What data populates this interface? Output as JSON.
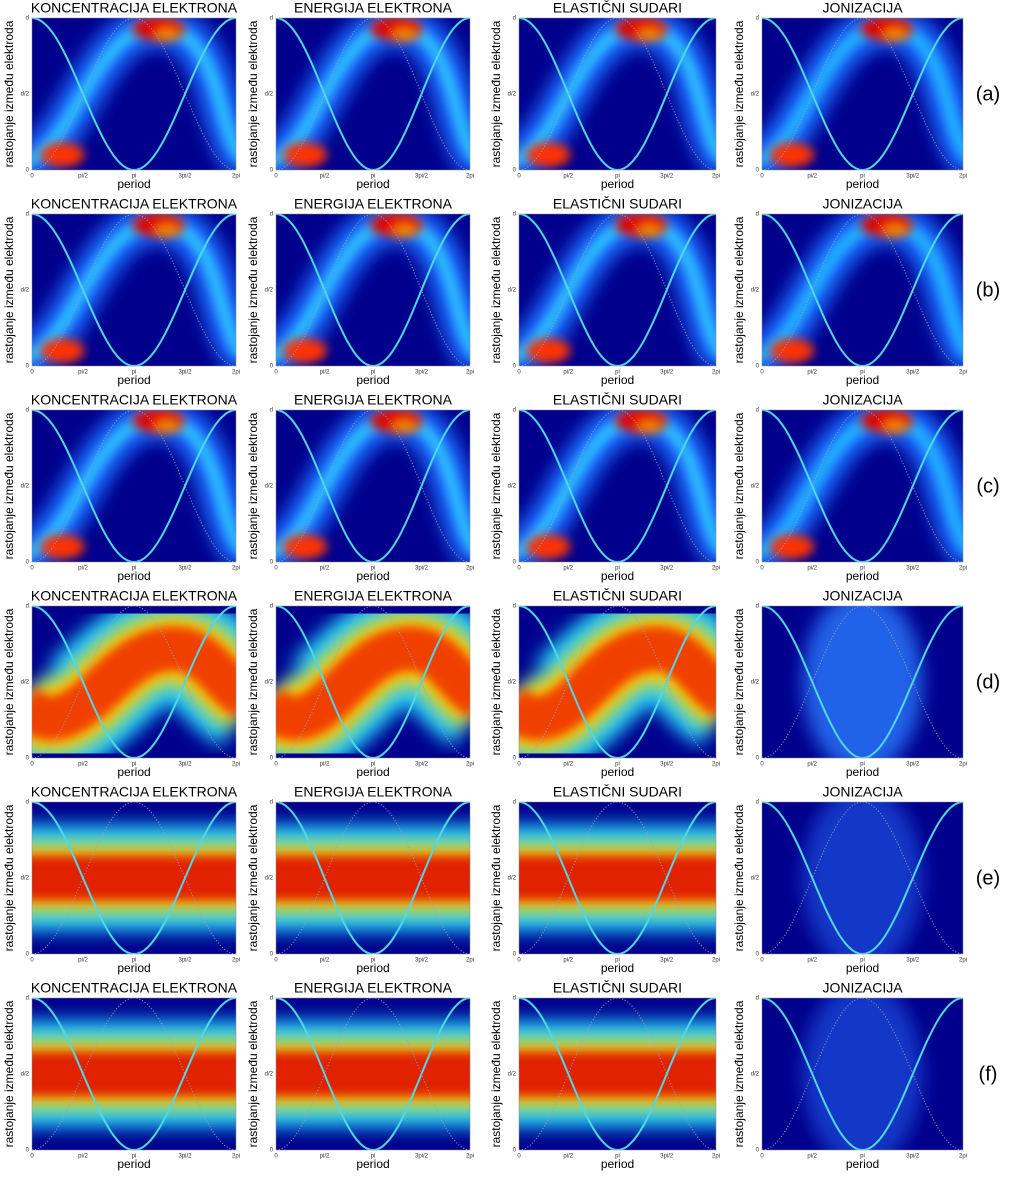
{
  "columns": [
    "KONCENTRACIJA ELEKTRONA",
    "ENERGIJA ELEKTRONA",
    "ELASTIČNI SUDARI",
    "JONIZACIJA"
  ],
  "rows": [
    "(a)",
    "(b)",
    "(c)",
    "(d)",
    "(e)",
    "(f)"
  ],
  "axis": {
    "x_label": "period",
    "y_label": "rastojanje između elektroda",
    "x_ticks": [
      "0",
      "pi/2",
      "pi",
      "3pi/2",
      "2pi"
    ],
    "y_ticks": [
      "0",
      "d/2",
      "d"
    ]
  }
}
